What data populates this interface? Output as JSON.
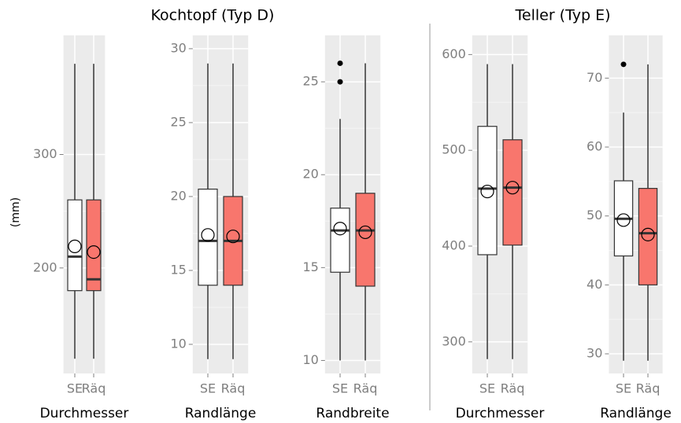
{
  "titles": [
    "Kochtopf (Typ D)",
    "Teller (Typ E)"
  ],
  "y_label": "(mm)",
  "chart_data": [
    {
      "type": "box",
      "x_label": "Durchmesser",
      "categories": [
        "SE",
        "Räq"
      ],
      "colors": [
        "#ffffff",
        "#f8766d"
      ],
      "ylim": [
        107,
        405
      ],
      "yticks": [
        200,
        300
      ],
      "boxes": [
        {
          "whisker_low": 120,
          "q1": 180,
          "median": 210,
          "q3": 260,
          "whisker_high": 380,
          "mean": 219,
          "outliers": []
        },
        {
          "whisker_low": 120,
          "q1": 180,
          "median": 190,
          "q3": 260,
          "whisker_high": 380,
          "mean": 214,
          "outliers": []
        }
      ]
    },
    {
      "type": "box",
      "x_label": "Randlänge",
      "categories": [
        "SE",
        "Räq"
      ],
      "colors": [
        "#ffffff",
        "#f8766d"
      ],
      "ylim": [
        8.03,
        30.9
      ],
      "yticks": [
        10,
        15,
        20,
        25,
        30
      ],
      "boxes": [
        {
          "whisker_low": 9,
          "q1": 14,
          "median": 17,
          "q3": 20.5,
          "whisker_high": 29,
          "mean": 17.4,
          "outliers": []
        },
        {
          "whisker_low": 9,
          "q1": 14,
          "median": 17,
          "q3": 20,
          "whisker_high": 29,
          "mean": 17.3,
          "outliers": []
        }
      ]
    },
    {
      "type": "box",
      "x_label": "Randbreite",
      "categories": [
        "SE",
        "Räq"
      ],
      "colors": [
        "#ffffff",
        "#f8766d"
      ],
      "ylim": [
        9.3,
        27.5
      ],
      "yticks": [
        10,
        15,
        20,
        25
      ],
      "boxes": [
        {
          "whisker_low": 10,
          "q1": 14.75,
          "median": 17,
          "q3": 18.2,
          "whisker_high": 23,
          "mean": 17.1,
          "outliers": [
            25,
            26
          ]
        },
        {
          "whisker_low": 10,
          "q1": 14,
          "median": 17,
          "q3": 19,
          "whisker_high": 26,
          "mean": 16.9,
          "outliers": []
        }
      ]
    },
    {
      "type": "box",
      "x_label": "Durchmesser",
      "categories": [
        "SE",
        "Räq"
      ],
      "colors": [
        "#ffffff",
        "#f8766d"
      ],
      "ylim": [
        267,
        620
      ],
      "yticks": [
        300,
        400,
        500,
        600
      ],
      "boxes": [
        {
          "whisker_low": 282,
          "q1": 391,
          "median": 460,
          "q3": 525,
          "whisker_high": 590,
          "mean": 457,
          "outliers": []
        },
        {
          "whisker_low": 282,
          "q1": 401,
          "median": 461,
          "q3": 511,
          "whisker_high": 590,
          "mean": 461,
          "outliers": []
        }
      ]
    },
    {
      "type": "box",
      "x_label": "Randlänge",
      "categories": [
        "SE",
        "Räq"
      ],
      "colors": [
        "#ffffff",
        "#f8766d"
      ],
      "ylim": [
        27.15,
        76.2
      ],
      "yticks": [
        30,
        40,
        50,
        60,
        70
      ],
      "boxes": [
        {
          "whisker_low": 29,
          "q1": 44.2,
          "median": 49.6,
          "q3": 55.1,
          "whisker_high": 65,
          "mean": 49.4,
          "outliers": [
            72
          ]
        },
        {
          "whisker_low": 29,
          "q1": 40,
          "median": 47.5,
          "q3": 54,
          "whisker_high": 72,
          "mean": 47.3,
          "outliers": []
        }
      ]
    }
  ]
}
